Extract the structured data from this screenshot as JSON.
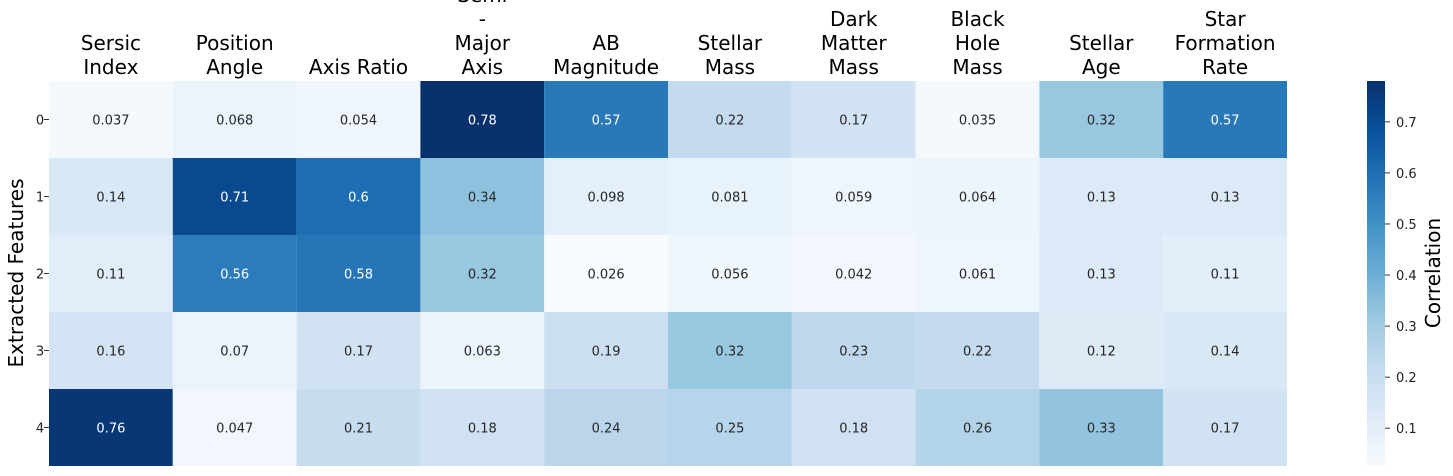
{
  "chart_data": {
    "type": "heatmap",
    "columns": [
      "Sersic Index",
      "Position Angle",
      "Axis Ratio",
      "Semi - Major Axis",
      "AB Magnitude",
      "Stellar Mass",
      "Dark Matter Mass",
      "Black Hole Mass",
      "Stellar Age",
      "Star Formation Rate"
    ],
    "rows": [
      "0",
      "1",
      "2",
      "3",
      "4"
    ],
    "ylabel": "Extracted Features",
    "values": [
      [
        0.037,
        0.068,
        0.054,
        0.78,
        0.57,
        0.22,
        0.17,
        0.035,
        0.32,
        0.57
      ],
      [
        0.14,
        0.71,
        0.6,
        0.34,
        0.098,
        0.081,
        0.059,
        0.064,
        0.13,
        0.13
      ],
      [
        0.11,
        0.56,
        0.58,
        0.32,
        0.026,
        0.056,
        0.042,
        0.061,
        0.13,
        0.11
      ],
      [
        0.16,
        0.07,
        0.17,
        0.063,
        0.19,
        0.32,
        0.23,
        0.22,
        0.12,
        0.14
      ],
      [
        0.76,
        0.047,
        0.21,
        0.18,
        0.24,
        0.25,
        0.18,
        0.26,
        0.33,
        0.17
      ]
    ],
    "labels": [
      [
        "0.037",
        "0.068",
        "0.054",
        "0.78",
        "0.57",
        "0.22",
        "0.17",
        "0.035",
        "0.32",
        "0.57"
      ],
      [
        "0.14",
        "0.71",
        "0.6",
        "0.34",
        "0.098",
        "0.081",
        "0.059",
        "0.064",
        "0.13",
        "0.13"
      ],
      [
        "0.11",
        "0.56",
        "0.58",
        "0.32",
        "0.026",
        "0.056",
        "0.042",
        "0.061",
        "0.13",
        "0.11"
      ],
      [
        "0.16",
        "0.07",
        "0.17",
        "0.063",
        "0.19",
        "0.32",
        "0.23",
        "0.22",
        "0.12",
        "0.14"
      ],
      [
        "0.76",
        "0.047",
        "0.21",
        "0.18",
        "0.24",
        "0.25",
        "0.18",
        "0.26",
        "0.33",
        "0.17"
      ]
    ],
    "colormap": "Blues",
    "vmin": 0.026,
    "vmax": 0.78,
    "colorbar": {
      "label": "Correlation",
      "ticks": [
        "0.1",
        "0.2",
        "0.3",
        "0.4",
        "0.5",
        "0.6",
        "0.7"
      ],
      "tick_values": [
        0.1,
        0.2,
        0.3,
        0.4,
        0.5,
        0.6,
        0.7
      ]
    },
    "column_label_position": "top"
  }
}
